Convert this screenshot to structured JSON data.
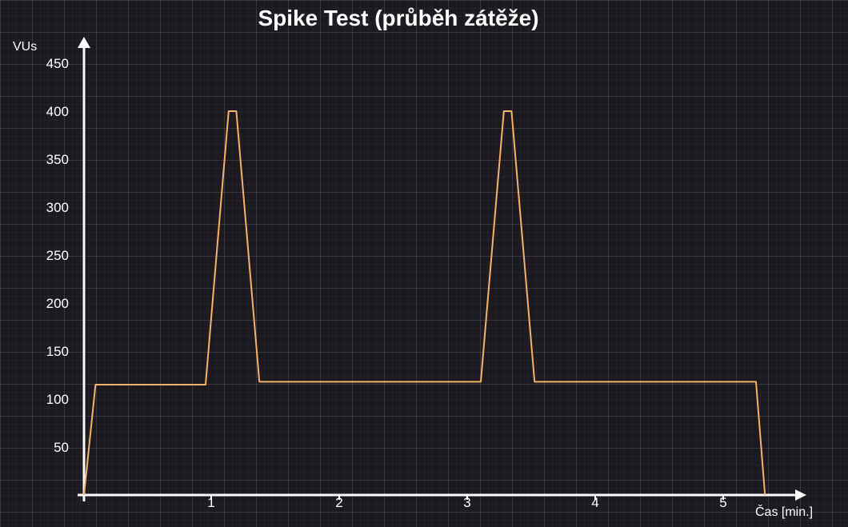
{
  "chart_data": {
    "type": "line",
    "title": "Spike Test (průběh zátěže)",
    "xlabel": "Čas [min.]",
    "ylabel": "VUs",
    "xlim": [
      0,
      5.6
    ],
    "ylim": [
      0,
      450
    ],
    "x_ticks": [
      1,
      2,
      3,
      4,
      5
    ],
    "y_ticks": [
      50,
      100,
      150,
      200,
      250,
      300,
      350,
      400,
      450
    ],
    "grid": true,
    "series": [
      {
        "color": "#f4b26d",
        "x": [
          0,
          0.09,
          0.95,
          1.13,
          1.19,
          1.37,
          3.1,
          3.28,
          3.34,
          3.52,
          5.25,
          5.32
        ],
        "y": [
          0,
          115,
          115,
          400,
          400,
          118,
          118,
          400,
          400,
          118,
          118,
          0
        ]
      }
    ]
  },
  "colors": {
    "background": "#1c1a20",
    "axis": "#ffffff",
    "line": "#f4b26d"
  }
}
